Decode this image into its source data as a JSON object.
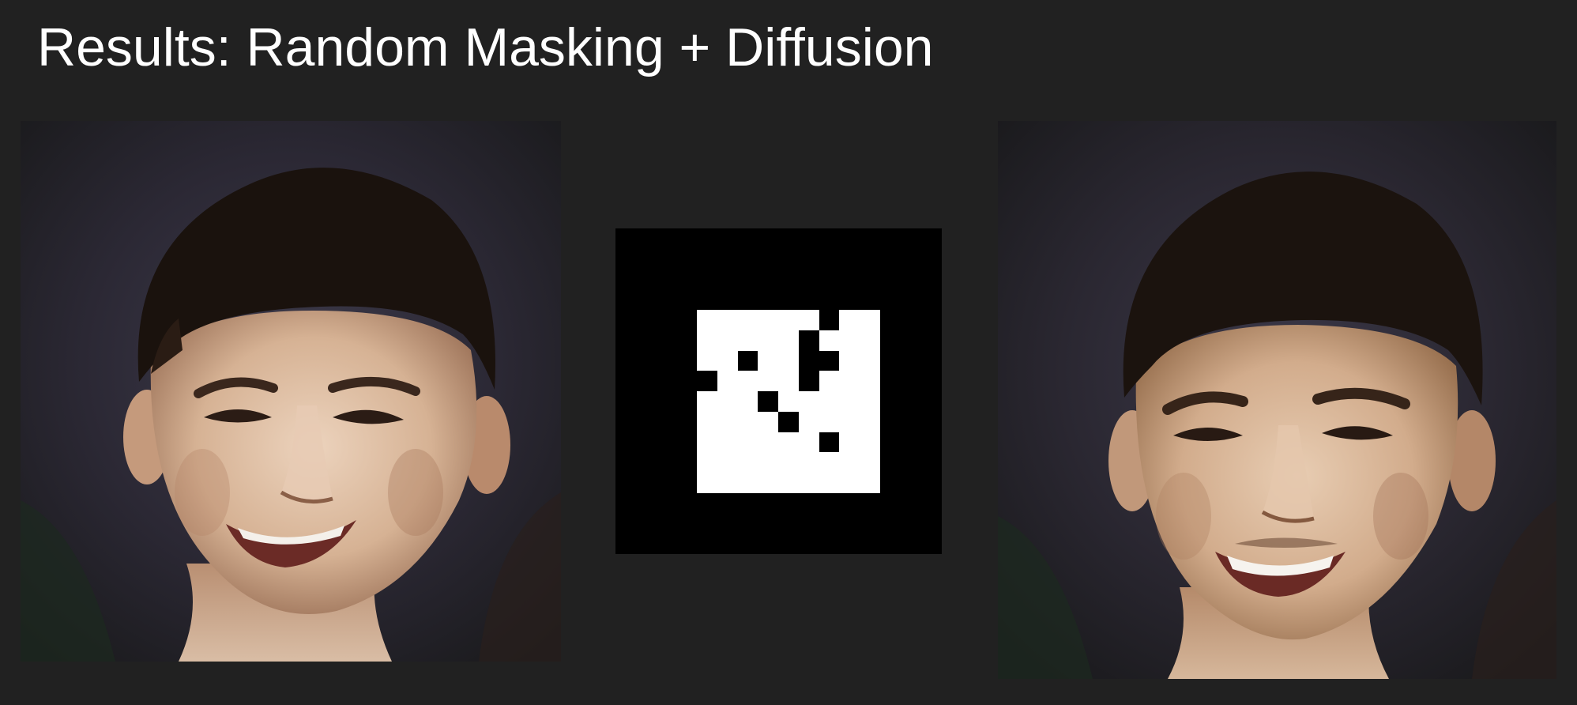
{
  "slide": {
    "title": "Results: Random Masking + Diffusion"
  },
  "images": {
    "original": {
      "name": "original-face-photo",
      "skin": "#d8b79c",
      "hair": "#1a120d",
      "background": "#2a2633"
    },
    "mask": {
      "name": "random-patch-mask",
      "grid_size": 9,
      "visible_color": "#ffffff",
      "masked_color": "#000000",
      "masked_cells": [
        [
          0,
          6
        ],
        [
          1,
          5
        ],
        [
          2,
          2
        ],
        [
          2,
          5
        ],
        [
          2,
          6
        ],
        [
          3,
          0
        ],
        [
          3,
          5
        ],
        [
          4,
          3
        ],
        [
          5,
          4
        ],
        [
          6,
          6
        ]
      ]
    },
    "reconstruction": {
      "name": "diffusion-reconstructed-face",
      "skin": "#d7b393",
      "hair": "#1b130e",
      "background": "#28252f"
    }
  }
}
